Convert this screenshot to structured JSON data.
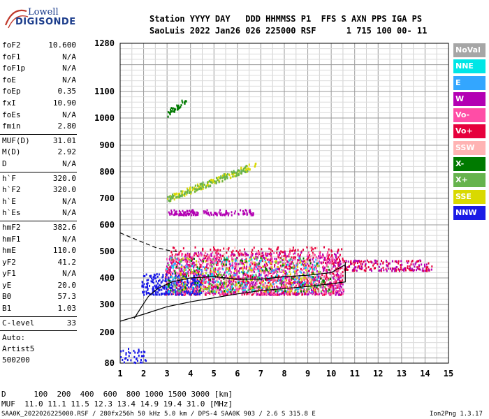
{
  "logo": {
    "line1": "Lowell",
    "line2": "DIGISONDE"
  },
  "header": {
    "line1": "Station YYYY DAY   DDD HHMMSS P1  FFS S AXN PPS IGA PS",
    "line2": "SaoLuis 2022 Jan26 026 225000 RSF      1 715 100 00- 11"
  },
  "params": [
    {
      "label": "foF2",
      "value": "10.600"
    },
    {
      "label": "foF1",
      "value": "N/A"
    },
    {
      "label": "foF1p",
      "value": "N/A"
    },
    {
      "label": "foE",
      "value": "N/A"
    },
    {
      "label": "foEp",
      "value": "0.35"
    },
    {
      "label": "fxI",
      "value": "10.90"
    },
    {
      "label": "foEs",
      "value": "N/A"
    },
    {
      "label": "fmin",
      "value": "2.80"
    },
    {
      "sep": true
    },
    {
      "label": "MUF(D)",
      "value": "31.01"
    },
    {
      "label": "M(D)",
      "value": "2.92"
    },
    {
      "label": "D",
      "value": "N/A"
    },
    {
      "sep": true
    },
    {
      "label": "h`F",
      "value": "320.0"
    },
    {
      "label": "h`F2",
      "value": "320.0"
    },
    {
      "label": "h`E",
      "value": "N/A"
    },
    {
      "label": "h`Es",
      "value": "N/A"
    },
    {
      "sep": true
    },
    {
      "label": "hmF2",
      "value": "382.6"
    },
    {
      "label": "hmF1",
      "value": "N/A"
    },
    {
      "label": "hmE",
      "value": "110.0"
    },
    {
      "label": "yF2",
      "value": "41.2"
    },
    {
      "label": "yF1",
      "value": "N/A"
    },
    {
      "label": "yE",
      "value": "20.0"
    },
    {
      "label": "B0",
      "value": "57.3"
    },
    {
      "label": "B1",
      "value": "1.03"
    },
    {
      "sep": true
    },
    {
      "label": "C-level",
      "value": "33"
    },
    {
      "sep": true
    }
  ],
  "auto": [
    "Auto:",
    "Artist5",
    "500200"
  ],
  "legend": [
    {
      "label": "NoVal",
      "color": "#a6a6a6"
    },
    {
      "label": "NNE",
      "color": "#00e6e6"
    },
    {
      "label": "E",
      "color": "#33a6ff"
    },
    {
      "label": "W",
      "color": "#b300b3"
    },
    {
      "label": "Vo-",
      "color": "#ff4da6"
    },
    {
      "label": "Vo+",
      "color": "#e6003c"
    },
    {
      "label": "SSW",
      "color": "#ffb3b3"
    },
    {
      "label": "X-",
      "color": "#007a00"
    },
    {
      "label": "X+",
      "color": "#66b34d"
    },
    {
      "label": "SSE",
      "color": "#d9d900"
    },
    {
      "label": "NNW",
      "color": "#1a1ae6"
    }
  ],
  "bottom": {
    "d_row": "D      100  200  400  600  800 1000 1500 3000 [km]",
    "muf_row": "MUF  11.0 11.1 11.5 12.3 13.4 14.9 19.4 31.0 [MHz]",
    "footer": "SAA0K_2022026225000.RSF / 280fx256h 50 kHz 5.0 km / DPS-4 SAA0K 903 / 2.6 S 315.8 E",
    "version": "Ion2Png 1.3.17"
  },
  "chart_data": {
    "type": "scatter",
    "xlim": [
      1,
      15
    ],
    "ylim": [
      80,
      1280
    ],
    "x_ticks": [
      1,
      2,
      3,
      4,
      5,
      6,
      7,
      8,
      9,
      10,
      11,
      12,
      13,
      14,
      15
    ],
    "y_ticks": [
      80,
      200,
      300,
      400,
      500,
      600,
      700,
      800,
      900,
      1000,
      1100,
      1280
    ],
    "y_scale": "nonlinear",
    "grid": true,
    "series": [
      {
        "color": "#e6003c",
        "x_range": [
          2.9,
          10.5
        ],
        "y_range": [
          340,
          520
        ],
        "points": 900
      },
      {
        "color": "#b300b3",
        "x_range": [
          2.9,
          10.5
        ],
        "y_range": [
          340,
          500
        ],
        "points": 600
      },
      {
        "color": "#ff4da6",
        "x_range": [
          2.9,
          10.5
        ],
        "y_range": [
          340,
          500
        ],
        "points": 500
      },
      {
        "color": "#1a1ae6",
        "x_range": [
          1.9,
          4.5
        ],
        "y_range": [
          340,
          420
        ],
        "points": 250
      },
      {
        "color": "#33a6ff",
        "x_range": [
          2.9,
          9.5
        ],
        "y_range": [
          350,
          480
        ],
        "points": 150
      },
      {
        "color": "#00e6e6",
        "x_range": [
          2.9,
          9.5
        ],
        "y_range": [
          350,
          480
        ],
        "points": 100
      },
      {
        "color": "#d9d900",
        "x_range": [
          3.5,
          9.5
        ],
        "y_range": [
          350,
          480
        ],
        "points": 150
      },
      {
        "color": "#66b34d",
        "x_range": [
          3.0,
          10.0
        ],
        "y_range": [
          350,
          480
        ],
        "points": 120
      },
      {
        "color": "#007a00",
        "x_range": [
          3.0,
          10.0
        ],
        "y_range": [
          350,
          480
        ],
        "points": 100
      },
      {
        "color": "#ffb3b3",
        "x_range": [
          4.0,
          9.5
        ],
        "y_range": [
          350,
          520
        ],
        "points": 80
      },
      {
        "color": "#e6003c",
        "x_range": [
          10.5,
          14.3
        ],
        "y_range": [
          430,
          470
        ],
        "points": 120
      },
      {
        "color": "#b300b3",
        "x_range": [
          10.5,
          14.3
        ],
        "y_range": [
          430,
          470
        ],
        "points": 80
      },
      {
        "color": "#d9d900",
        "x_range": [
          3.0,
          6.8
        ],
        "y_range": [
          700,
          830
        ],
        "points": 150,
        "trend": true
      },
      {
        "color": "#66b34d",
        "x_range": [
          3.0,
          6.5
        ],
        "y_range": [
          700,
          820
        ],
        "points": 120,
        "trend": true
      },
      {
        "color": "#b300b3",
        "x_range": [
          3.0,
          4.3
        ],
        "y_range": [
          640,
          660
        ],
        "points": 70
      },
      {
        "color": "#b300b3",
        "x_range": [
          4.5,
          6.7
        ],
        "y_range": [
          640,
          660
        ],
        "points": 70
      },
      {
        "color": "#007a00",
        "x_range": [
          3.0,
          3.8
        ],
        "y_range": [
          1020,
          1070
        ],
        "points": 40,
        "trend": true
      },
      {
        "color": "#1a1ae6",
        "x_range": [
          1.0,
          2.1
        ],
        "y_range": [
          85,
          140
        ],
        "points": 40
      }
    ],
    "profile_curve": [
      [
        1,
        240
      ],
      [
        2,
        265
      ],
      [
        3,
        292
      ],
      [
        4,
        310
      ],
      [
        5,
        325
      ],
      [
        6,
        340
      ],
      [
        7,
        352
      ],
      [
        8,
        360
      ],
      [
        9,
        368
      ],
      [
        10,
        378
      ],
      [
        10.6,
        385
      ],
      [
        10.6,
        460
      ]
    ],
    "dashed_curve": [
      [
        1,
        570
      ],
      [
        1.8,
        540
      ],
      [
        2.5,
        515
      ],
      [
        3,
        505
      ],
      [
        3.5,
        498
      ]
    ],
    "lower_curve": [
      [
        1.6,
        250
      ],
      [
        1.9,
        290
      ],
      [
        2.2,
        330
      ],
      [
        2.6,
        360
      ],
      [
        3.2,
        385
      ],
      [
        4,
        400
      ],
      [
        5,
        405
      ],
      [
        6,
        395
      ],
      [
        7,
        395
      ],
      [
        8,
        405
      ],
      [
        9,
        410
      ],
      [
        10,
        420
      ],
      [
        10.6,
        450
      ]
    ]
  }
}
